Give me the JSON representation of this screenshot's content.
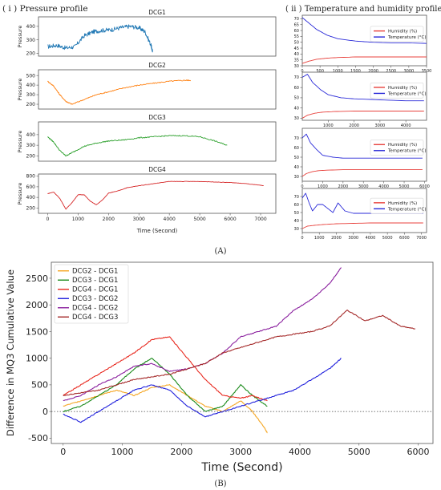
{
  "panel_a": {
    "label": "(A)",
    "left_title": "( i ) Pressure profile",
    "right_title": "( ii ) Temperature and humidity profile"
  },
  "panel_b": {
    "label": "(B)"
  },
  "colors": {
    "DCG1": "#1f77b4",
    "DCG2": "#ff7f0e",
    "DCG3": "#2ca02c",
    "DCG4": "#d62728",
    "humidity": "#e8413c",
    "temperature": "#2a2ad8",
    "DCG2_DCG1": "#f5a623",
    "DCG3_DCG1": "#1a8a1a",
    "DCG4_DCG1": "#e8281e",
    "DCG3_DCG2": "#1f1fdc",
    "DCG4_DCG2": "#8a1f9e",
    "DCG4_DCG3": "#a52a2a"
  },
  "chart_data": [
    {
      "type": "line",
      "title": "DCG1",
      "ylabel": "Pressure",
      "xlabel": "",
      "ylim": [
        180,
        470
      ],
      "xlim": [
        -300,
        7500
      ],
      "yticks": [
        200,
        300,
        400
      ],
      "xticks": [],
      "series": [
        {
          "name": "DCG1",
          "x": [
            0,
            300,
            600,
            900,
            1200,
            1500,
            1800,
            2100,
            2400,
            2700,
            3000,
            3200,
            3400,
            3450
          ],
          "y": [
            250,
            260,
            240,
            250,
            330,
            360,
            370,
            375,
            390,
            400,
            390,
            360,
            260,
            210
          ]
        }
      ]
    },
    {
      "type": "line",
      "title": "DCG2",
      "ylabel": "Pressure",
      "xlabel": "",
      "ylim": [
        150,
        560
      ],
      "xlim": [
        -300,
        7500
      ],
      "yticks": [
        200,
        300,
        400,
        500
      ],
      "xticks": [],
      "series": [
        {
          "name": "DCG2",
          "x": [
            0,
            200,
            400,
            600,
            800,
            1200,
            1600,
            2000,
            2500,
            3000,
            3500,
            4000,
            4500,
            4700
          ],
          "y": [
            440,
            390,
            300,
            230,
            200,
            250,
            300,
            330,
            370,
            400,
            420,
            440,
            450,
            450
          ]
        }
      ]
    },
    {
      "type": "line",
      "title": "DCG3",
      "ylabel": "Pressure",
      "xlabel": "",
      "ylim": [
        150,
        520
      ],
      "xlim": [
        -300,
        7500
      ],
      "yticks": [
        200,
        300,
        400
      ],
      "xticks": [],
      "series": [
        {
          "name": "DCG3",
          "x": [
            0,
            200,
            400,
            600,
            800,
            1200,
            1600,
            2000,
            2500,
            3000,
            3500,
            4000,
            4500,
            5000,
            5500,
            5900
          ],
          "y": [
            380,
            330,
            250,
            200,
            230,
            290,
            320,
            340,
            350,
            370,
            380,
            390,
            390,
            380,
            340,
            300
          ]
        }
      ]
    },
    {
      "type": "line",
      "title": "DCG4",
      "ylabel": "Pressure",
      "xlabel": "Time (Second)",
      "ylim": [
        100,
        840
      ],
      "xlim": [
        -300,
        7500
      ],
      "yticks": [
        200,
        400,
        600,
        800
      ],
      "xticks": [
        0,
        1000,
        2000,
        3000,
        4000,
        5000,
        6000,
        7000
      ],
      "series": [
        {
          "name": "DCG4",
          "x": [
            0,
            200,
            400,
            600,
            800,
            1000,
            1200,
            1400,
            1600,
            1800,
            2000,
            2300,
            2600,
            3000,
            3500,
            4000,
            4500,
            5000,
            5500,
            6000,
            6500,
            7100
          ],
          "y": [
            470,
            500,
            380,
            180,
            300,
            450,
            450,
            330,
            260,
            350,
            480,
            520,
            580,
            620,
            660,
            700,
            700,
            700,
            690,
            680,
            660,
            620
          ]
        }
      ]
    },
    {
      "type": "line",
      "ylabel": "",
      "xlabel": "",
      "ylim": [
        30,
        73
      ],
      "xlim": [
        0,
        3500
      ],
      "yticks": [
        30,
        35,
        40,
        45,
        50,
        55,
        60,
        65,
        70
      ],
      "xticks": [
        0,
        500,
        1000,
        1500,
        2000,
        2500,
        3000,
        3500
      ],
      "legend": "right",
      "series": [
        {
          "name": "Humidity (%)",
          "x": [
            0,
            200,
            400,
            700,
            1000,
            1500,
            2000,
            2500,
            3000,
            3500
          ],
          "y": [
            32,
            34,
            35.5,
            36.5,
            37,
            37.5,
            37.5,
            37.5,
            37.5,
            37.5
          ]
        },
        {
          "name": "Temperature (°C)",
          "x": [
            0,
            200,
            400,
            700,
            1000,
            1500,
            2000,
            2500,
            3000,
            3500
          ],
          "y": [
            71,
            66,
            61,
            56,
            53,
            51,
            50,
            49.5,
            49.5,
            49
          ]
        }
      ]
    },
    {
      "type": "line",
      "ylabel": "",
      "xlabel": "",
      "ylim": [
        28,
        75
      ],
      "xlim": [
        0,
        4800
      ],
      "yticks": [
        30,
        40,
        50,
        60,
        70
      ],
      "xticks": [
        1000,
        2000,
        3000,
        4000
      ],
      "legend": "right",
      "series": [
        {
          "name": "Humidity (%)",
          "x": [
            0,
            200,
            500,
            800,
            1200,
            2000,
            3000,
            4000,
            4700
          ],
          "y": [
            30,
            33,
            35,
            36,
            36.5,
            37,
            37,
            37,
            37
          ]
        },
        {
          "name": "Temperature (°C)",
          "x": [
            0,
            200,
            400,
            700,
            1000,
            1500,
            2000,
            3000,
            4000,
            4700
          ],
          "y": [
            70,
            73,
            65,
            58,
            53,
            50,
            49,
            48,
            47,
            47
          ]
        }
      ]
    },
    {
      "type": "line",
      "ylabel": "",
      "xlabel": "",
      "ylim": [
        25,
        80
      ],
      "xlim": [
        0,
        6100
      ],
      "yticks": [
        30,
        40,
        50,
        60,
        70
      ],
      "xticks": [
        0,
        1000,
        2000,
        3000,
        4000,
        5000,
        6000
      ],
      "legend": "right",
      "series": [
        {
          "name": "Humidity (%)",
          "x": [
            0,
            200,
            500,
            800,
            1200,
            2000,
            3000,
            4000,
            5000,
            5900
          ],
          "y": [
            30,
            33,
            35,
            36,
            36.5,
            37,
            37,
            37,
            37,
            37
          ]
        },
        {
          "name": "Temperature (°C)",
          "x": [
            0,
            200,
            400,
            700,
            1000,
            1500,
            2000,
            3000,
            4000,
            5000,
            5900
          ],
          "y": [
            70,
            74,
            65,
            58,
            52,
            50,
            49,
            49,
            49,
            49,
            49
          ]
        }
      ]
    },
    {
      "type": "line",
      "ylabel": "",
      "xlabel": "",
      "ylim": [
        25,
        80
      ],
      "xlim": [
        0,
        7300
      ],
      "yticks": [
        30,
        40,
        50,
        60,
        70
      ],
      "xticks": [
        0,
        1000,
        2000,
        3000,
        4000,
        5000,
        6000,
        7000
      ],
      "legend": "right",
      "series": [
        {
          "name": "Humidity (%)",
          "x": [
            0,
            300,
            700,
            1200,
            2000,
            3000,
            4000,
            5000,
            6000,
            7100
          ],
          "y": [
            30,
            33,
            34,
            35,
            36,
            36.5,
            37,
            37,
            37,
            37
          ]
        },
        {
          "name": "Temperature (°C)",
          "x": [
            0,
            200,
            400,
            600,
            900,
            1200,
            1500,
            1800,
            2100,
            2500,
            3000,
            4000,
            5000,
            6000,
            7100
          ],
          "y": [
            68,
            74,
            62,
            52,
            60,
            60,
            55,
            50,
            62,
            52,
            49,
            49,
            49,
            49,
            49
          ]
        }
      ]
    },
    {
      "type": "line",
      "ylabel": "Difference in MQ3 Cumulative Value",
      "xlabel": "Time (Second)",
      "ylim": [
        -600,
        2800
      ],
      "xlim": [
        -200,
        6250
      ],
      "yticks": [
        -500,
        0,
        500,
        1000,
        1500,
        2000,
        2500
      ],
      "xticks": [
        0,
        1000,
        2000,
        3000,
        4000,
        5000,
        6000
      ],
      "zero_line": "dotted",
      "legend": "top-left",
      "series": [
        {
          "name": "DCG2 - DCG1",
          "x": [
            0,
            300,
            600,
            900,
            1200,
            1500,
            1800,
            2100,
            2400,
            2700,
            3000,
            3200,
            3400,
            3450
          ],
          "y": [
            100,
            200,
            300,
            400,
            300,
            450,
            500,
            300,
            100,
            0,
            200,
            0,
            -300,
            -400
          ]
        },
        {
          "name": "DCG3 - DCG1",
          "x": [
            0,
            300,
            600,
            900,
            1200,
            1500,
            1800,
            2100,
            2400,
            2700,
            3000,
            3200,
            3450
          ],
          "y": [
            0,
            100,
            300,
            500,
            800,
            1000,
            700,
            300,
            0,
            100,
            500,
            300,
            100
          ]
        },
        {
          "name": "DCG4 - DCG1",
          "x": [
            0,
            300,
            600,
            900,
            1200,
            1500,
            1800,
            2100,
            2400,
            2700,
            3000,
            3200,
            3450
          ],
          "y": [
            300,
            500,
            700,
            900,
            1100,
            1350,
            1400,
            1000,
            600,
            300,
            250,
            300,
            200
          ]
        },
        {
          "name": "DCG3 - DCG2",
          "x": [
            0,
            300,
            600,
            900,
            1200,
            1500,
            1800,
            2100,
            2400,
            2700,
            3000,
            3300,
            3600,
            3900,
            4200,
            4500,
            4700
          ],
          "y": [
            -50,
            -200,
            0,
            200,
            400,
            500,
            400,
            100,
            -100,
            0,
            100,
            200,
            300,
            400,
            600,
            800,
            1000
          ]
        },
        {
          "name": "DCG4 - DCG2",
          "x": [
            0,
            300,
            600,
            900,
            1200,
            1500,
            1800,
            2100,
            2400,
            2700,
            3000,
            3300,
            3600,
            3900,
            4200,
            4500,
            4700
          ],
          "y": [
            200,
            300,
            500,
            650,
            850,
            900,
            750,
            800,
            900,
            1100,
            1400,
            1500,
            1600,
            1900,
            2100,
            2400,
            2700
          ]
        },
        {
          "name": "DCG4 - DCG3",
          "x": [
            0,
            300,
            600,
            900,
            1200,
            1500,
            1800,
            2100,
            2400,
            2700,
            3000,
            3300,
            3600,
            3900,
            4200,
            4500,
            4800,
            5100,
            5400,
            5700,
            5950
          ],
          "y": [
            300,
            350,
            400,
            500,
            600,
            650,
            700,
            800,
            900,
            1100,
            1200,
            1300,
            1400,
            1450,
            1500,
            1600,
            1900,
            1700,
            1800,
            1600,
            1550
          ]
        }
      ]
    }
  ]
}
